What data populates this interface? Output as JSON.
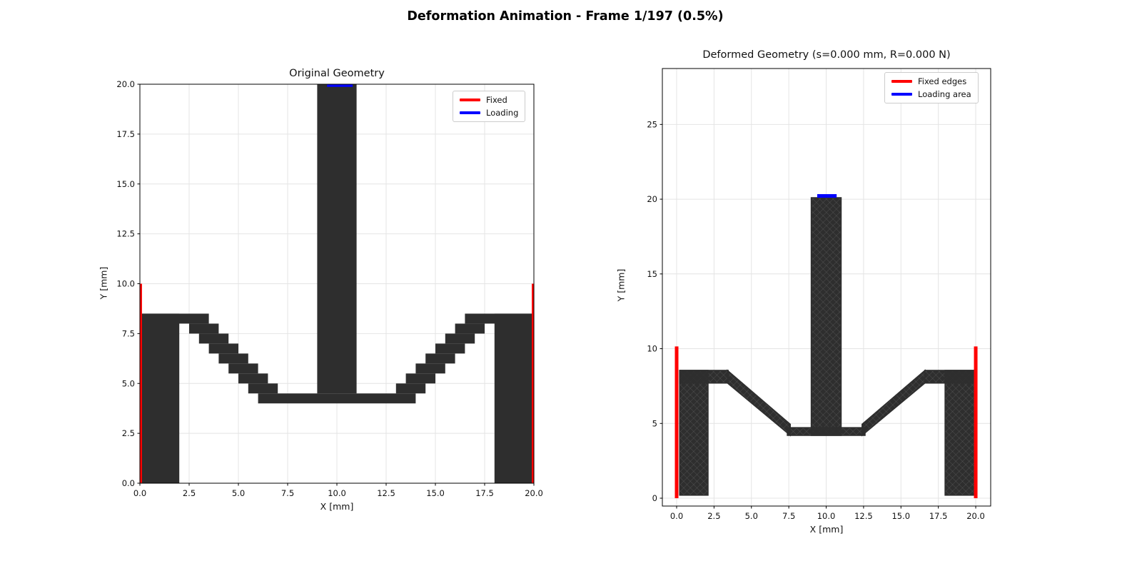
{
  "figure": {
    "title": "Deformation Animation - Frame 1/197 (0.5%)",
    "frame_current": "1",
    "frame_total": "197",
    "frame_percent": "0.5%"
  },
  "colors": {
    "material": "#2e2e2e",
    "fixed": "#ff0000",
    "loading": "#0000ff",
    "grid": "#e4e4e4",
    "spine": "#000000",
    "text": "#111111"
  },
  "chart_data": [
    {
      "type": "area",
      "title": "Original Geometry",
      "xlabel": "X [mm]",
      "ylabel": "Y [mm]",
      "xlim": [
        0,
        20
      ],
      "ylim": [
        0,
        20
      ],
      "grid": true,
      "xticks": [
        0,
        2.5,
        5,
        7.5,
        10,
        12.5,
        15,
        17.5,
        20
      ],
      "xtick_labels": [
        "0.0",
        "2.5",
        "5.0",
        "7.5",
        "10.0",
        "12.5",
        "15.0",
        "17.5",
        "20.0"
      ],
      "yticks": [
        0,
        2.5,
        5,
        7.5,
        10,
        12.5,
        15,
        17.5,
        20
      ],
      "ytick_labels": [
        "0.0",
        "2.5",
        "5.0",
        "7.5",
        "10.0",
        "12.5",
        "15.0",
        "17.5",
        "20.0"
      ],
      "legend": {
        "position": "upper right",
        "entries": [
          {
            "label": "Fixed",
            "color": "#ff0000"
          },
          {
            "label": "Loading",
            "color": "#0000ff"
          }
        ]
      },
      "geometry": {
        "fill": "solid",
        "rects": [
          [
            0,
            0,
            2,
            8.5
          ],
          [
            18,
            0,
            20,
            8.5
          ],
          [
            0,
            8,
            3.5,
            8.5
          ],
          [
            16.5,
            8,
            20,
            8.5
          ],
          [
            9,
            4.5,
            11,
            20
          ],
          [
            7.5,
            4,
            12.5,
            4.5
          ],
          [
            2.5,
            7.5,
            4,
            8
          ],
          [
            3,
            7,
            4.5,
            7.5
          ],
          [
            3.5,
            6.5,
            5,
            7
          ],
          [
            4,
            6,
            5.5,
            6.5
          ],
          [
            4.5,
            5.5,
            6,
            6
          ],
          [
            5,
            5,
            6.5,
            5.5
          ],
          [
            5.5,
            4.5,
            7,
            5
          ],
          [
            6,
            4,
            7.5,
            4.5
          ],
          [
            16,
            7.5,
            17.5,
            8
          ],
          [
            15.5,
            7,
            17,
            7.5
          ],
          [
            15,
            6.5,
            16.5,
            7
          ],
          [
            14.5,
            6,
            16,
            6.5
          ],
          [
            14,
            5.5,
            15.5,
            6
          ],
          [
            13.5,
            5,
            15,
            5.5
          ],
          [
            13,
            4.5,
            14.5,
            5
          ],
          [
            12.5,
            4,
            14,
            4.5
          ]
        ],
        "polys": []
      },
      "fixed_lines": [
        {
          "x": 0,
          "y0": 0,
          "y1": 10
        },
        {
          "x": 20,
          "y0": 0,
          "y1": 10
        }
      ],
      "loading_line": {
        "y": 20,
        "x0": 9.5,
        "x1": 10.8
      }
    },
    {
      "type": "scatter",
      "title": "Deformed Geometry (s=0.000 mm, R=0.000 N)",
      "xlabel": "X [mm]",
      "ylabel": "Y [mm]",
      "xlim": [
        -1,
        21
      ],
      "ylim": [
        -0.5,
        28.7
      ],
      "grid": true,
      "xticks": [
        0,
        2.5,
        5,
        7.5,
        10,
        12.5,
        15,
        17.5,
        20
      ],
      "xtick_labels": [
        "0.0",
        "2.5",
        "5.0",
        "7.5",
        "10.0",
        "12.5",
        "15.0",
        "17.5",
        "20.0"
      ],
      "yticks": [
        0,
        5,
        10,
        15,
        20,
        25
      ],
      "ytick_labels": [
        "0",
        "5",
        "10",
        "15",
        "20",
        "25"
      ],
      "legend": {
        "position": "upper right",
        "entries": [
          {
            "label": "Fixed edges",
            "color": "#ff0000"
          },
          {
            "label": "Loading area",
            "color": "#0000ff"
          }
        ]
      },
      "readout_s_mm": "0.000",
      "readout_R_N": "0.000",
      "geometry": {
        "fill": "mesh-diamond",
        "rects": [
          [
            0.2,
            0.2,
            2.1,
            8.55
          ],
          [
            17.95,
            0.2,
            19.95,
            8.55
          ],
          [
            0.2,
            7.7,
            3.45,
            8.55
          ],
          [
            16.6,
            7.7,
            19.95,
            8.55
          ],
          [
            9.0,
            4.2,
            11.0,
            20.1
          ],
          [
            7.4,
            4.2,
            12.6,
            4.72
          ]
        ],
        "polys": [
          [
            [
              3.4,
              8.55
            ],
            [
              7.6,
              4.95
            ],
            [
              7.6,
              4.2
            ],
            [
              3.4,
              7.7
            ]
          ],
          [
            [
              16.6,
              8.55
            ],
            [
              12.4,
              4.95
            ],
            [
              12.4,
              4.2
            ],
            [
              16.6,
              7.7
            ]
          ]
        ]
      },
      "fixed_lines": [
        {
          "x": 0,
          "y0": 0,
          "y1": 10.15
        },
        {
          "x": 20,
          "y0": 0,
          "y1": 10.15
        }
      ],
      "loading_line": {
        "y": 20.22,
        "x0": 9.4,
        "x1": 10.7
      }
    }
  ]
}
